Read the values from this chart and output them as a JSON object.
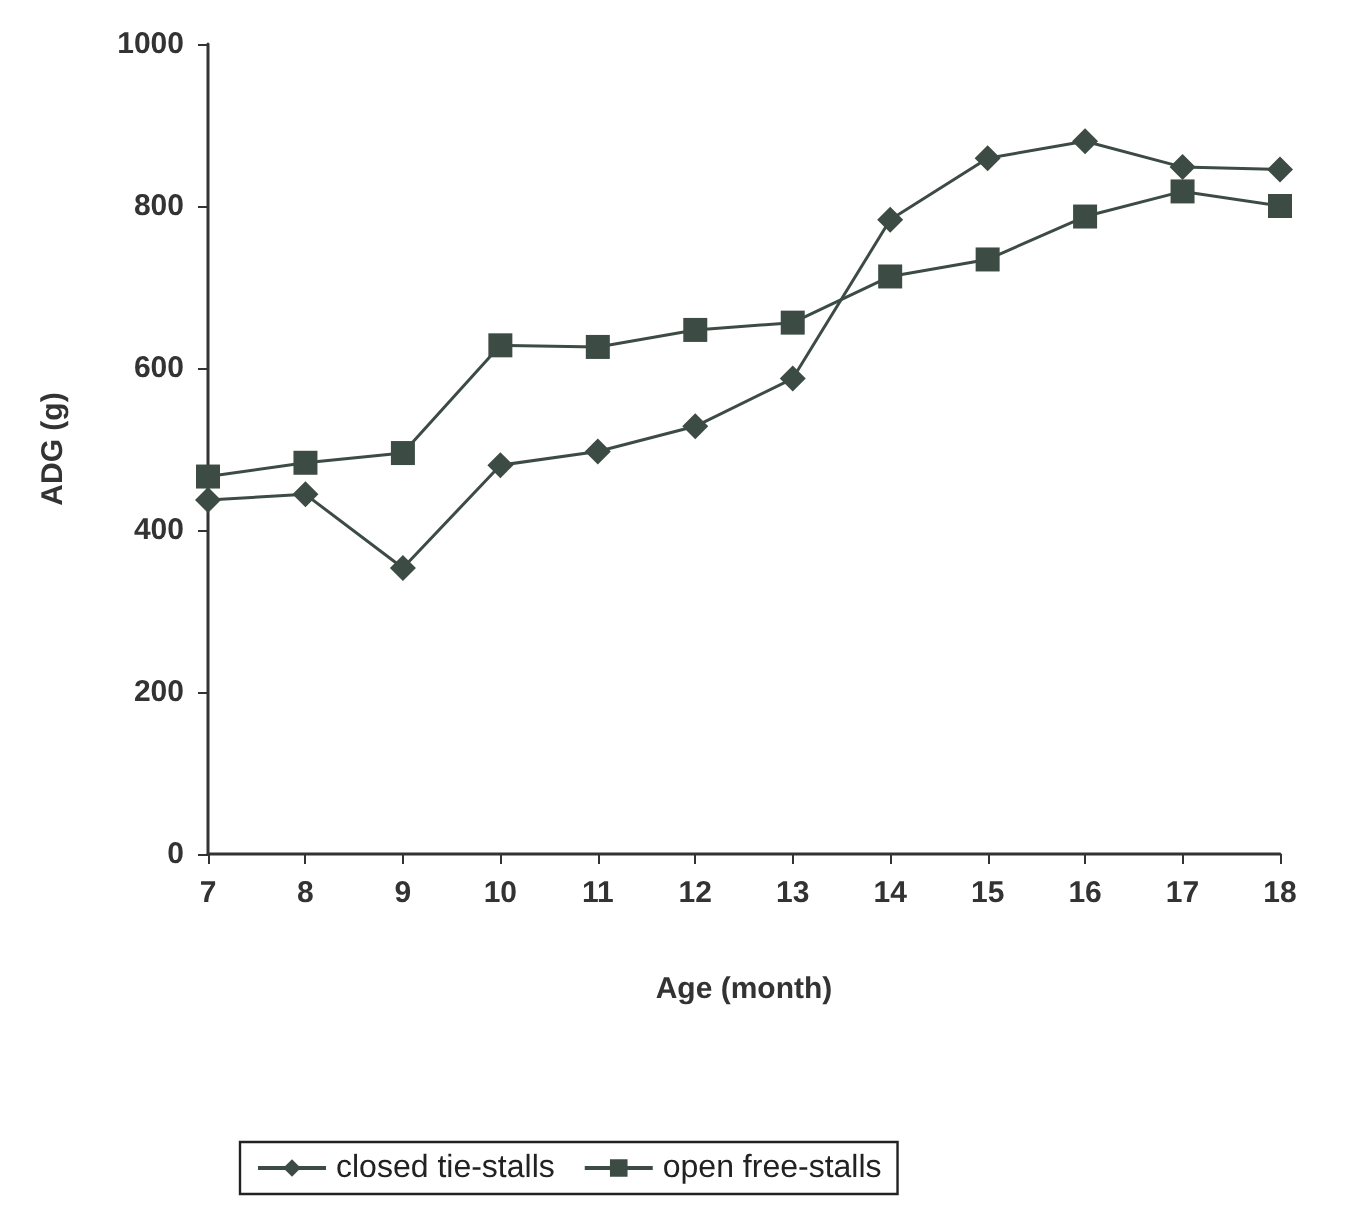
{
  "chart_data": {
    "type": "line",
    "xlabel": "Age (month)",
    "ylabel": "ADG (g)",
    "x": [
      7,
      8,
      9,
      10,
      11,
      12,
      13,
      14,
      15,
      16,
      17,
      18
    ],
    "xlim": [
      7,
      18
    ],
    "xticks": [
      7,
      8,
      9,
      10,
      11,
      12,
      13,
      14,
      15,
      16,
      17,
      18
    ],
    "ylim": [
      0,
      1000
    ],
    "yticks": [
      0,
      200,
      400,
      600,
      800,
      1000
    ],
    "grid": false,
    "legend": "bottom",
    "series": [
      {
        "name": "closed tie-stalls",
        "color": "#3d4b45",
        "marker": "diamond",
        "values": [
          437,
          444,
          353,
          480,
          497,
          528,
          587,
          783,
          859,
          880,
          848,
          845
        ]
      },
      {
        "name": "open free-stalls",
        "color": "#3d4b45",
        "marker": "square",
        "values": [
          466,
          483,
          495,
          628,
          626,
          647,
          656,
          713,
          734,
          787,
          818,
          800
        ]
      }
    ]
  }
}
